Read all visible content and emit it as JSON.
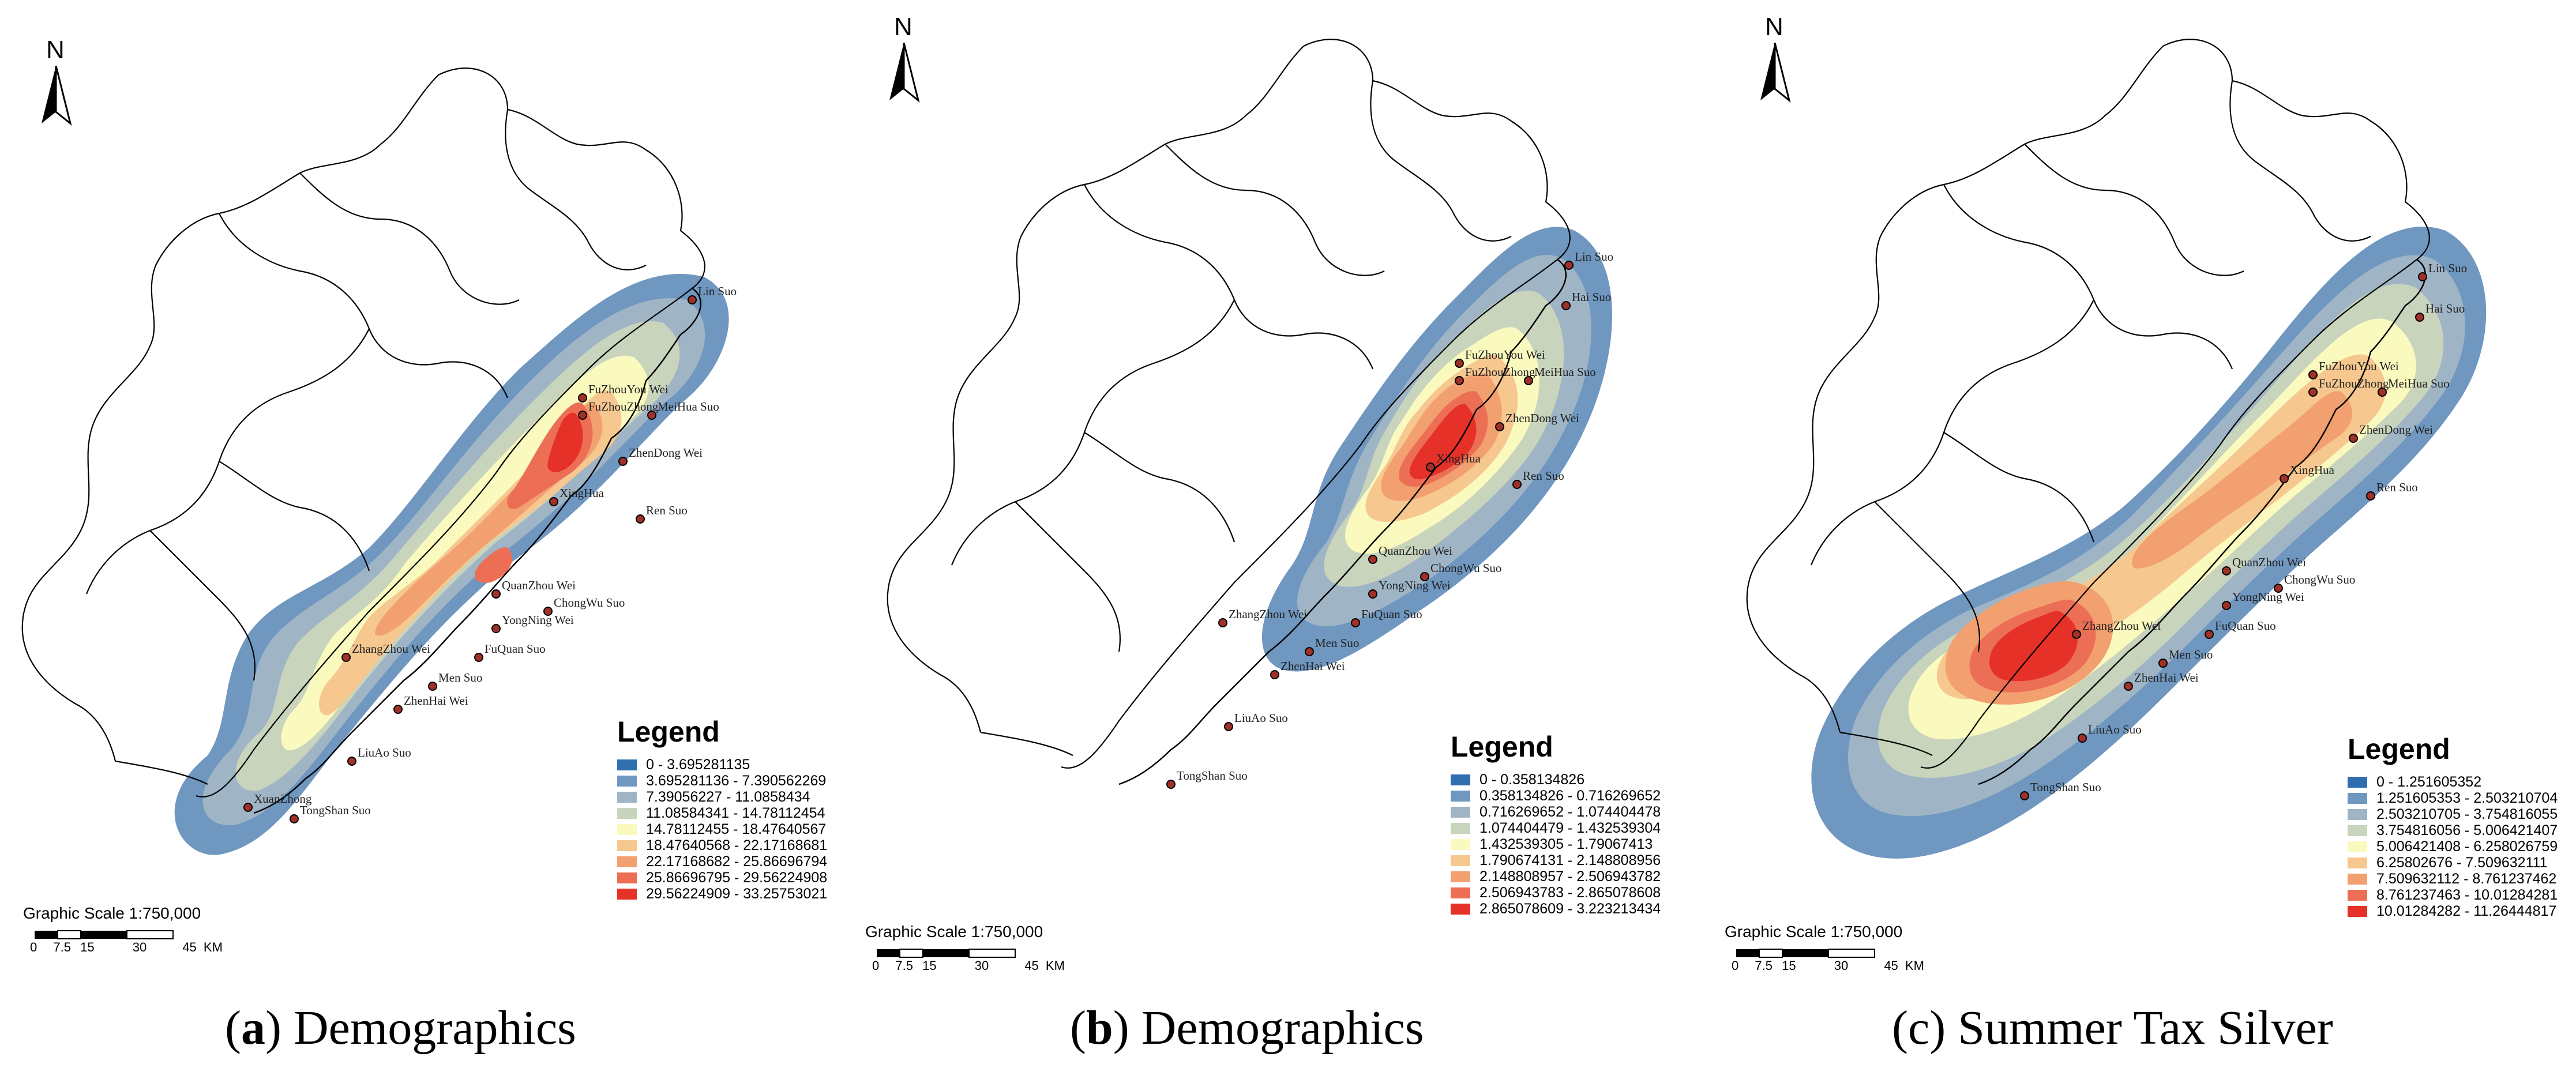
{
  "panels": [
    {
      "north_label": "N",
      "scale_label": "Graphic Scale 1:750,000",
      "scale_ticks": [
        "0",
        "7.5",
        "15",
        "30",
        "45"
      ],
      "scale_unit": "KM",
      "legend_title": "Legend",
      "legend_items": [
        "0 - 3.695281135",
        "3.695281136 - 7.390562269",
        "7.39056227 - 11.0858434",
        "11.08584341 - 14.78112454",
        "14.78112455 - 18.47640567",
        "18.47640568 - 22.17168681",
        "22.17168682 - 25.86696794",
        "25.86696795 - 29.56224908",
        "29.56224909 - 33.25753021"
      ],
      "caption_letter": "a",
      "caption_open": "(",
      "caption_close": ") Demographics",
      "cities": [
        "Lin Suo",
        "FuZhouYou Wei",
        "FuZhouZhong",
        "MeiHua Suo",
        "ZhenDong Wei",
        "XingHua",
        "Ren Suo",
        "QuanZhou Wei",
        "ChongWu Suo",
        "YongNing Wei",
        "FuQuan Suo",
        "ZhangZhou Wei",
        "Men Suo",
        "ZhenHai Wei",
        "LiuAo Suo",
        "XuanZhong",
        "TongShan Suo"
      ]
    },
    {
      "north_label": "N",
      "scale_label": "Graphic Scale 1:750,000",
      "scale_ticks": [
        "0",
        "7.5",
        "15",
        "30",
        "45"
      ],
      "scale_unit": "KM",
      "legend_title": "Legend",
      "legend_items": [
        "0 - 0.358134826",
        "0.358134826 - 0.716269652",
        "0.716269652 - 1.074404478",
        "1.074404479 - 1.432539304",
        "1.432539305 - 1.79067413",
        "1.790674131 - 2.148808956",
        "2.148808957 - 2.506943782",
        "2.506943783 - 2.865078608",
        "2.865078609 - 3.223213434"
      ],
      "caption_letter": "b",
      "caption_open": "(",
      "caption_close": ") Demographics",
      "cities": [
        "Lin Suo",
        "Hai Suo",
        "FuZhouYou Wei",
        "FuZhouZhong",
        "MeiHua Suo",
        "ZhenDong Wei",
        "XingHua",
        "Ren Suo",
        "QuanZhou Wei",
        "ChongWu Suo",
        "YongNing Wei",
        "FuQuan Suo",
        "ZhangZhou Wei",
        "Men Suo",
        "ZhenHai Wei",
        "LiuAo Suo",
        "TongShan Suo"
      ]
    },
    {
      "north_label": "N",
      "scale_label": "Graphic Scale 1:750,000",
      "scale_ticks": [
        "0",
        "7.5",
        "15",
        "30",
        "45"
      ],
      "scale_unit": "KM",
      "legend_title": "Legend",
      "legend_items": [
        "0 - 1.251605352",
        "1.251605353 - 2.503210704",
        "2.503210705 - 3.754816055",
        "3.754816056 - 5.006421407",
        "5.006421408 - 6.258026759",
        "6.25802676 - 7.509632111",
        "7.509632112 - 8.761237462",
        "8.761237463 - 10.01284281",
        "10.01284282 - 11.26444817"
      ],
      "caption_letter": "",
      "caption_open": "(c",
      "caption_close": ") Summer Tax Silver",
      "cities": [
        "Lin Suo",
        "Hai Suo",
        "FuZhouYou Wei",
        "FuZhouZhong",
        "MeiHua Suo",
        "ZhenDong Wei",
        "XingHua",
        "Ren Suo",
        "QuanZhou Wei",
        "ChongWu Suo",
        "YongNing Wei",
        "FuQuan Suo",
        "ZhangZhou Wei",
        "Men Suo",
        "ZhenHai Wei",
        "LiuAo Suo",
        "TongShan Suo"
      ]
    }
  ],
  "legend_colors": [
    "#2f6fb0",
    "#6f97c0",
    "#9fb5c6",
    "#c9d4bd",
    "#fafabf",
    "#f6c890",
    "#f2a070",
    "#ec6f55",
    "#e53127"
  ],
  "colors": {
    "city_marker": "#a0302a",
    "outline": "#000000"
  }
}
